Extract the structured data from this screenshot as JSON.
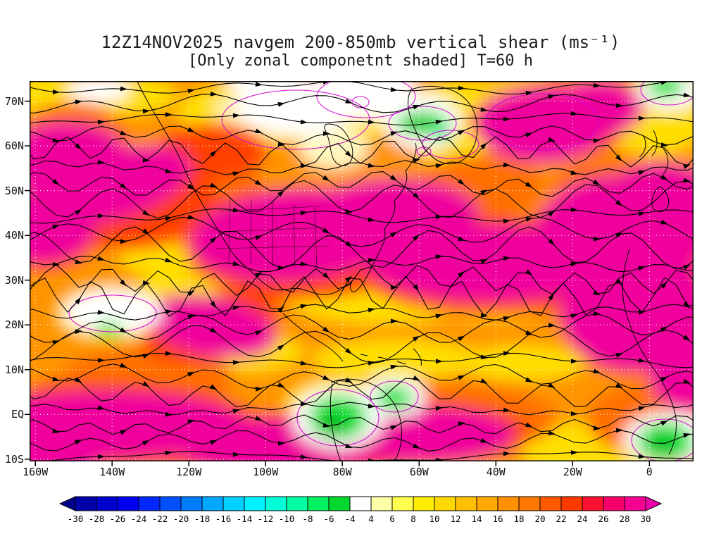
{
  "title": {
    "line1": "12Z14NOV2025 navgem 200-850mb vertical shear (ms⁻¹)",
    "line2": "[Only zonal componetnt shaded] T=60 h"
  },
  "map": {
    "lat_ticks": [
      {
        "label": "70N",
        "value": 70
      },
      {
        "label": "60N",
        "value": 60
      },
      {
        "label": "50N",
        "value": 50
      },
      {
        "label": "40N",
        "value": 40
      },
      {
        "label": "30N",
        "value": 30
      },
      {
        "label": "20N",
        "value": 20
      },
      {
        "label": "10N",
        "value": 10
      },
      {
        "label": "EQ",
        "value": 0
      },
      {
        "label": "10S",
        "value": -10
      }
    ],
    "lon_ticks": [
      {
        "label": "160W",
        "value": -160
      },
      {
        "label": "140W",
        "value": -140
      },
      {
        "label": "120W",
        "value": -120
      },
      {
        "label": "100W",
        "value": -100
      },
      {
        "label": "80W",
        "value": -80
      },
      {
        "label": "60W",
        "value": -60
      },
      {
        "label": "40W",
        "value": -40
      },
      {
        "label": "20W",
        "value": -20
      },
      {
        "label": "0",
        "value": 0
      }
    ]
  },
  "colorbar": {
    "units": "ms⁻¹",
    "tick_labels": [
      "-30",
      "-28",
      "-26",
      "-24",
      "-22",
      "-20",
      "-18",
      "-16",
      "-14",
      "-12",
      "-10",
      "-8",
      "-6",
      "-4",
      "4",
      "6",
      "8",
      "10",
      "12",
      "14",
      "16",
      "18",
      "20",
      "22",
      "24",
      "26",
      "28",
      "30"
    ],
    "colors": [
      "#00008b",
      "#0000a8",
      "#0000cd",
      "#0000f0",
      "#0028ff",
      "#0050ff",
      "#007cff",
      "#00a8ff",
      "#00d0ff",
      "#00f0ff",
      "#00ffd8",
      "#00ffa0",
      "#00f060",
      "#00d830",
      "#ffffff",
      "#ffffa8",
      "#ffff50",
      "#ffec00",
      "#ffd800",
      "#ffc000",
      "#ffa800",
      "#ff9000",
      "#ff7800",
      "#ff5a00",
      "#ff3a00",
      "#fb1030",
      "#f8006c",
      "#f40092",
      "#ee00aa"
    ]
  },
  "chart_data": {
    "type": "heatmap",
    "title": "12Z14NOV2025 navgem 200-850mb vertical shear (ms⁻¹)",
    "subtitle": "[Only zonal componetnt shaded] T=60 h",
    "model": "navgem",
    "field": "200-850mb vertical shear",
    "units": "ms⁻¹",
    "valid_time": "12Z14NOV2025",
    "forecast_hour": "T=60 h",
    "shading_note": "Only zonal componetnt shaded",
    "overlay": "streamlines with arrowheads (wind shear vectors), thin magenta contour lines, coastlines",
    "x_axis": {
      "label": "longitude",
      "ticks": [
        "160W",
        "140W",
        "120W",
        "100W",
        "80W",
        "60W",
        "40W",
        "20W",
        "0"
      ],
      "range_deg": [
        -161.5,
        11.5
      ]
    },
    "y_axis": {
      "label": "latitude",
      "ticks": [
        "70N",
        "60N",
        "50N",
        "40N",
        "30N",
        "20N",
        "10N",
        "EQ",
        "10S"
      ],
      "range_deg": [
        -10.5,
        74.5
      ]
    },
    "grid": true,
    "grid_style": "white dotted at 10° lat / 20° lon",
    "legend_position": "bottom",
    "colorbar_levels": [
      -30,
      -28,
      -26,
      -24,
      -22,
      -20,
      -18,
      -16,
      -14,
      -12,
      -10,
      -8,
      -6,
      -4,
      4,
      6,
      8,
      10,
      12,
      14,
      16,
      18,
      20,
      22,
      24,
      26,
      28,
      30
    ],
    "colorbar_colors": [
      "#00008b",
      "#0000a8",
      "#0000cd",
      "#0000f0",
      "#0028ff",
      "#0050ff",
      "#007cff",
      "#00a8ff",
      "#00d0ff",
      "#00f0ff",
      "#00ffd8",
      "#00ffa0",
      "#00f060",
      "#00d830",
      "#ffffff",
      "#ffffa8",
      "#ffff50",
      "#ffec00",
      "#ffd800",
      "#ffc000",
      "#ffa800",
      "#ff9000",
      "#ff7800",
      "#ff5a00",
      "#ff3a00",
      "#fb1030",
      "#f8006c",
      "#f40092",
      "#ee00aa"
    ],
    "dominant_field_description": "Mostly strongly positive zonal shear (yellow/orange/red/magenta 6 to >30 ms⁻¹) across the domain; near-zero (white) and weakly negative (green) patches over the Arctic, Greenland, tropics near the equator and far bottom-right."
  }
}
